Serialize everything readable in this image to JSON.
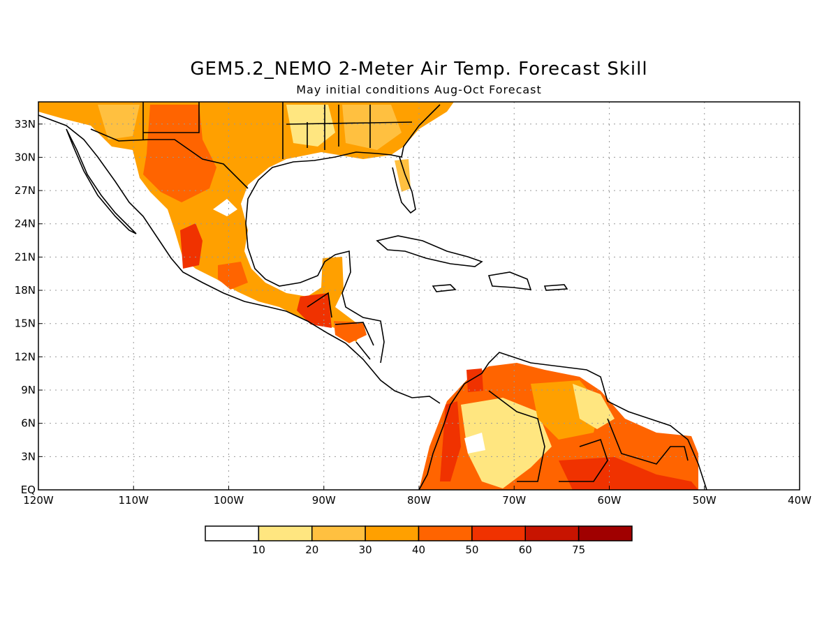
{
  "title": "GEM5.2_NEMO 2-Meter Air Temp. Forecast Skill",
  "subtitle": "May initial conditions  Aug-Oct Forecast",
  "colors": {
    "ocean": "#ffffff",
    "coast": "#000000",
    "grid": "#999999"
  },
  "map": {
    "lon_range": [
      -120,
      -40
    ],
    "lat_range": [
      0,
      35
    ],
    "lon_ticks": [
      "120W",
      "110W",
      "100W",
      "90W",
      "80W",
      "70W",
      "60W",
      "50W",
      "40W"
    ],
    "lat_ticks": [
      "EQ",
      "3N",
      "6N",
      "9N",
      "12N",
      "15N",
      "18N",
      "21N",
      "24N",
      "27N",
      "30N",
      "33N"
    ]
  },
  "legend": {
    "labels": [
      "10",
      "20",
      "30",
      "40",
      "50",
      "60",
      "75"
    ],
    "colors": [
      "#ffffff",
      "#ffe680",
      "#ffc040",
      "#ffa000",
      "#ff6400",
      "#f03200",
      "#c81400",
      "#a00000"
    ]
  }
}
